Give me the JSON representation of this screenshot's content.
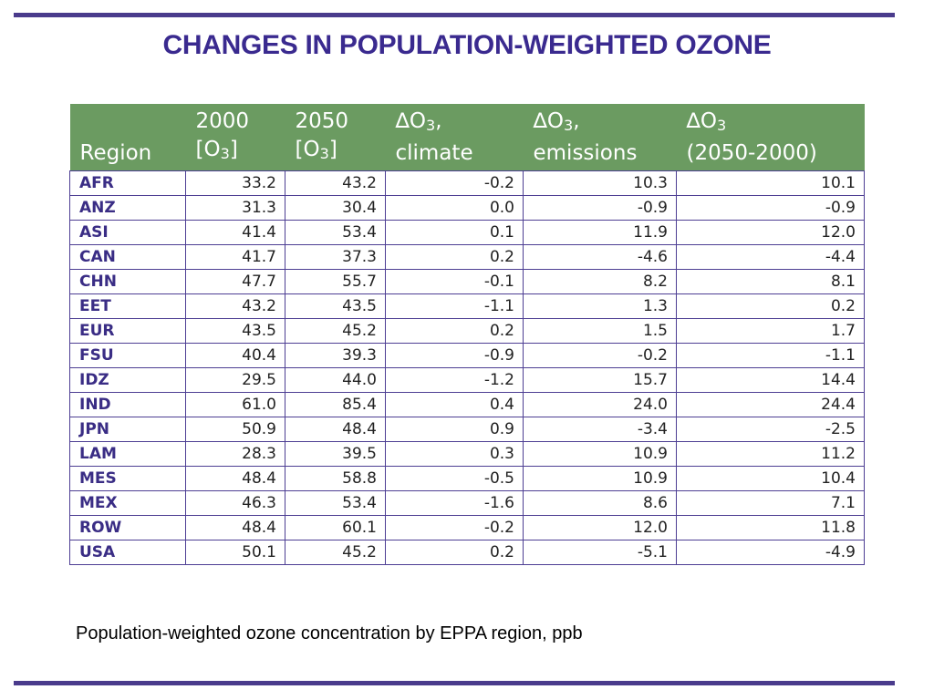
{
  "title": "CHANGES IN POPULATION-WEIGHTED OZONE",
  "table": {
    "header": {
      "region": "Region",
      "y2000_line1": "2000",
      "y2000_pre": "[O",
      "y2000_sub": "3",
      "y2000_post": "]",
      "y2050_line1": "2050",
      "y2050_pre": "[O",
      "y2050_sub": "3",
      "y2050_post": "]",
      "climate_pre": "∆O",
      "climate_sub": "3",
      "climate_post": ",",
      "climate_line2": "climate",
      "emissions_pre": "∆O",
      "emissions_sub": "3",
      "emissions_post": ",",
      "emissions_line2": "emissions",
      "total_pre": "∆O",
      "total_sub": "3",
      "total_line2": "(2050-2000)"
    },
    "rows": [
      {
        "region": "AFR",
        "o3_2000": "33.2",
        "o3_2050": "43.2",
        "d_climate": "-0.2",
        "d_emissions": "10.3",
        "d_total": "10.1"
      },
      {
        "region": "ANZ",
        "o3_2000": "31.3",
        "o3_2050": "30.4",
        "d_climate": "0.0",
        "d_emissions": "-0.9",
        "d_total": "-0.9"
      },
      {
        "region": "ASI",
        "o3_2000": "41.4",
        "o3_2050": "53.4",
        "d_climate": "0.1",
        "d_emissions": "11.9",
        "d_total": "12.0"
      },
      {
        "region": "CAN",
        "o3_2000": "41.7",
        "o3_2050": "37.3",
        "d_climate": "0.2",
        "d_emissions": "-4.6",
        "d_total": "-4.4"
      },
      {
        "region": "CHN",
        "o3_2000": "47.7",
        "o3_2050": "55.7",
        "d_climate": "-0.1",
        "d_emissions": "8.2",
        "d_total": "8.1"
      },
      {
        "region": "EET",
        "o3_2000": "43.2",
        "o3_2050": "43.5",
        "d_climate": "-1.1",
        "d_emissions": "1.3",
        "d_total": "0.2"
      },
      {
        "region": "EUR",
        "o3_2000": "43.5",
        "o3_2050": "45.2",
        "d_climate": "0.2",
        "d_emissions": "1.5",
        "d_total": "1.7"
      },
      {
        "region": "FSU",
        "o3_2000": "40.4",
        "o3_2050": "39.3",
        "d_climate": "-0.9",
        "d_emissions": "-0.2",
        "d_total": "-1.1"
      },
      {
        "region": "IDZ",
        "o3_2000": "29.5",
        "o3_2050": "44.0",
        "d_climate": "-1.2",
        "d_emissions": "15.7",
        "d_total": "14.4"
      },
      {
        "region": "IND",
        "o3_2000": "61.0",
        "o3_2050": "85.4",
        "d_climate": "0.4",
        "d_emissions": "24.0",
        "d_total": "24.4"
      },
      {
        "region": "JPN",
        "o3_2000": "50.9",
        "o3_2050": "48.4",
        "d_climate": "0.9",
        "d_emissions": "-3.4",
        "d_total": "-2.5"
      },
      {
        "region": "LAM",
        "o3_2000": "28.3",
        "o3_2050": "39.5",
        "d_climate": "0.3",
        "d_emissions": "10.9",
        "d_total": "11.2"
      },
      {
        "region": "MES",
        "o3_2000": "48.4",
        "o3_2050": "58.8",
        "d_climate": "-0.5",
        "d_emissions": "10.9",
        "d_total": "10.4"
      },
      {
        "region": "MEX",
        "o3_2000": "46.3",
        "o3_2050": "53.4",
        "d_climate": "-1.6",
        "d_emissions": "8.6",
        "d_total": "7.1"
      },
      {
        "region": "ROW",
        "o3_2000": "48.4",
        "o3_2050": "60.1",
        "d_climate": "-0.2",
        "d_emissions": "12.0",
        "d_total": "11.8"
      },
      {
        "region": "USA",
        "o3_2000": "50.1",
        "o3_2050": "45.2",
        "d_climate": "0.2",
        "d_emissions": "-5.1",
        "d_total": "-4.9"
      }
    ]
  },
  "caption": "Population-weighted ozone concentration by EPPA region, ppb",
  "colors": {
    "title": "#3a2a8f",
    "rule": "#4a3b8c",
    "header_bg": "#6b9b61",
    "region_text": "#3a2d85",
    "cell_border": "#4d3e93"
  }
}
